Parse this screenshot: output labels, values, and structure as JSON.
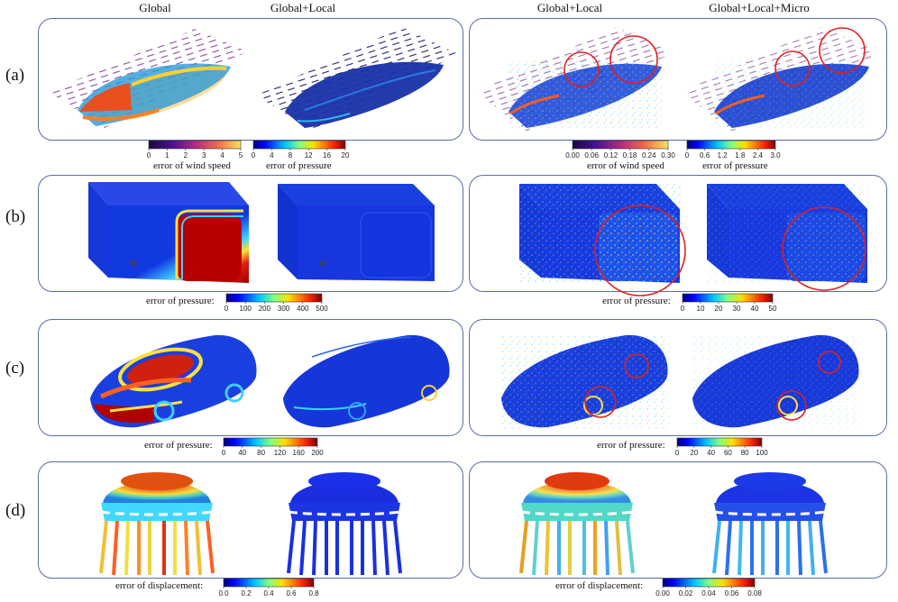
{
  "column_headers": [
    "Global",
    "Global+Local",
    "Global+Local",
    "Global+Local+Micro"
  ],
  "rows": [
    "(a)",
    "(b)",
    "(c)",
    "(d)"
  ],
  "row_a": {
    "left_bars": [
      {
        "title": "error of wind speed",
        "ticks": [
          "0",
          "1",
          "2",
          "3",
          "4",
          "5"
        ],
        "colormap": "magma"
      },
      {
        "title": "error of pressure",
        "ticks": [
          "0",
          "4",
          "8",
          "12",
          "16",
          "20"
        ],
        "colormap": "jet"
      }
    ],
    "right_bars": [
      {
        "title": "error of wind speed",
        "ticks": [
          "0.00",
          "0.06",
          "0.12",
          "0.18",
          "0.24",
          "0.30"
        ],
        "colormap": "magma"
      },
      {
        "title": "error of pressure",
        "ticks": [
          "0",
          "0.6",
          "1.2",
          "1.8",
          "2.4",
          "3.0"
        ],
        "colormap": "jet"
      }
    ]
  },
  "row_b": {
    "left_bar": {
      "title": "error of pressure:",
      "ticks": [
        "0",
        "100",
        "200",
        "300",
        "400",
        "500"
      ],
      "colormap": "jet"
    },
    "right_bar": {
      "title": "error of pressure:",
      "ticks": [
        "0",
        "10",
        "20",
        "30",
        "40",
        "50"
      ],
      "colormap": "jet"
    }
  },
  "row_c": {
    "left_bar": {
      "title": "error of pressure:",
      "ticks": [
        "0",
        "40",
        "80",
        "120",
        "160",
        "200"
      ],
      "colormap": "jet"
    },
    "right_bar": {
      "title": "error of  pressure:",
      "ticks": [
        "0",
        "20",
        "40",
        "60",
        "80",
        "100"
      ],
      "colormap": "jet"
    }
  },
  "row_d": {
    "left_bar": {
      "title": "error of  displacement:",
      "ticks": [
        "0.0",
        "0.2",
        "0.4",
        "0.6",
        "0.8"
      ],
      "colormap": "jet"
    },
    "right_bar": {
      "title": "error of  displacement:",
      "ticks": [
        "0.00",
        "0.02",
        "0.04",
        "0.06",
        "0.08"
      ],
      "colormap": "jet"
    }
  },
  "colors": {
    "panel_border": "#5a6ea6",
    "highlight_circle": "#e02020",
    "low_error": "#1d2fd0",
    "high_error": "#b00000"
  }
}
